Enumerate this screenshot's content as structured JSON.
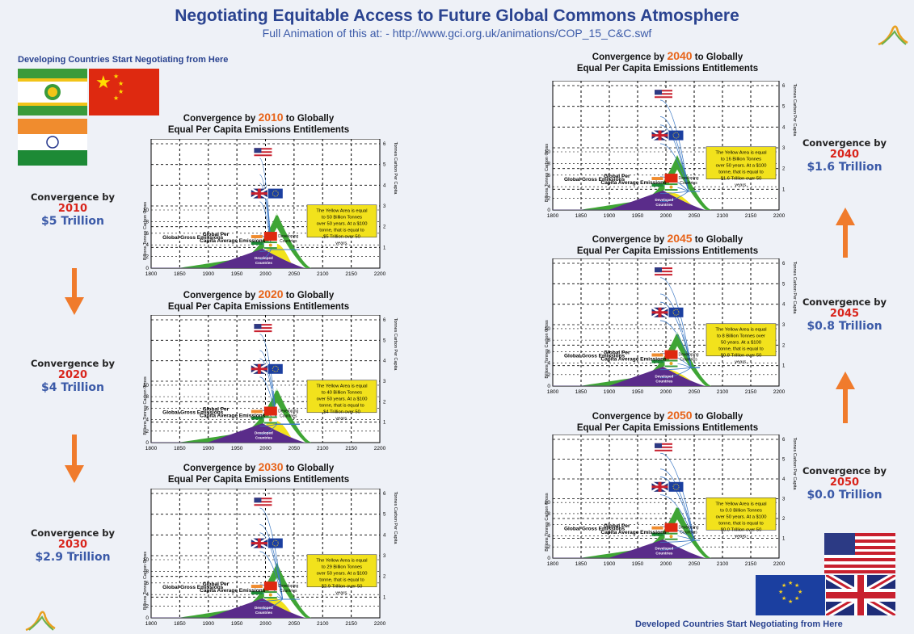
{
  "header": {
    "title": "Negotiating Equitable Access to Future Global Commons Atmosphere",
    "subtitle": "Full Animation of this at: - http://www.gci.org.uk/animations/COP_15_C&C.swf"
  },
  "developing_label": "Developing Countries Start Negotiating from Here",
  "developed_label": "Developed Countries Start Negotiating from Here",
  "side_labels": [
    {
      "line1": "Convergence by",
      "year": "2010",
      "cost": "$5 Trillion"
    },
    {
      "line1": "Convergence by",
      "year": "2020",
      "cost": "$4 Trillion"
    },
    {
      "line1": "Convergence by",
      "year": "2030",
      "cost": "$2.9 Trillion"
    },
    {
      "line1": "Convergence by",
      "year": "2040",
      "cost": "$1.6 Trillion"
    },
    {
      "line1": "Convergence by",
      "year": "2045",
      "cost": "$0.8 Trillion"
    },
    {
      "line1": "Convergence by",
      "year": "2050",
      "cost": "$0.0 Trillion"
    }
  ],
  "colors": {
    "title_blue": "#2a4390",
    "year_red": "#d9251c",
    "year_orange": "#e8641a",
    "arrow": "#f07b2c",
    "green": "#3fa535",
    "purple": "#5a2c8a",
    "yellow": "#f2e21c"
  },
  "chart_data": [
    {
      "type": "area",
      "convergence_year": "2010",
      "title_pre": "Convergence by",
      "title_post": "to Globally",
      "title_line2": "Equal Per Capita Emissions Entitlements",
      "x_ticks": [
        "1800",
        "1850",
        "1900",
        "1950",
        "2000",
        "2050",
        "2100",
        "2150",
        "2200"
      ],
      "y_left_ticks": [
        "0",
        "2",
        "4",
        "6",
        "8",
        "10"
      ],
      "y_right_ticks": [
        "1",
        "2",
        "3",
        "4",
        "5",
        "6"
      ],
      "xlim": [
        1800,
        2200
      ],
      "ylim_left": [
        0,
        10
      ],
      "ylim_right": [
        0,
        6
      ],
      "ylabel_left": "Billions Tonnes Carbon Gross",
      "ylabel_right": "Tonnes Carbon Per Capita",
      "labels": {
        "per_capita": "Global Per Capita Average Emissions",
        "gross": "Global Gross Emissions",
        "developing": "Developing Countries",
        "developed": "Developed Countries",
        "forests": "Forests"
      },
      "note": "The Yellow Area is equal to 50 Billion Tonnes over 50 years. At a $100 tonne, that is equal to $5 Trillion over 50 years.",
      "yellow_billion_tonnes": 50,
      "trillion": 5
    },
    {
      "type": "area",
      "convergence_year": "2020",
      "title_pre": "Convergence by",
      "title_post": "to Globally",
      "title_line2": "Equal Per Capita Emissions Entitlements",
      "x_ticks": [
        "1800",
        "1850",
        "1900",
        "1950",
        "2000",
        "2050",
        "2100",
        "2150",
        "2200"
      ],
      "y_left_ticks": [
        "0",
        "2",
        "4",
        "6",
        "8",
        "10"
      ],
      "y_right_ticks": [
        "1",
        "2",
        "3",
        "4",
        "5",
        "6"
      ],
      "xlim": [
        1800,
        2200
      ],
      "ylim_left": [
        0,
        10
      ],
      "ylim_right": [
        0,
        6
      ],
      "ylabel_left": "Billions Tonnes Carbon Gross",
      "ylabel_right": "Tonnes Carbon Per Capita",
      "labels": {
        "per_capita": "Global Per Capita Average Emissions",
        "gross": "Global Gross Emissions",
        "developing": "Developing Countries",
        "developed": "Developed Countries",
        "forests": "Forests"
      },
      "note": "The Yellow Area is equal to 40 Billion Tonnes over 50 years. At a $100 tonne, that is equal to $4 Trillion over 50 years.",
      "yellow_billion_tonnes": 40,
      "trillion": 4
    },
    {
      "type": "area",
      "convergence_year": "2030",
      "title_pre": "Convergence by",
      "title_post": "to Globally",
      "title_line2": "Equal Per Capita Emissions Entitlements",
      "x_ticks": [
        "1800",
        "1850",
        "1900",
        "1950",
        "2000",
        "2050",
        "2100",
        "2150",
        "2200"
      ],
      "y_left_ticks": [
        "0",
        "2",
        "4",
        "6",
        "8",
        "10"
      ],
      "y_right_ticks": [
        "1",
        "2",
        "3",
        "4",
        "5",
        "6"
      ],
      "xlim": [
        1800,
        2200
      ],
      "ylim_left": [
        0,
        10
      ],
      "ylim_right": [
        0,
        6
      ],
      "ylabel_left": "Billions Tonnes Carbon Gross",
      "ylabel_right": "Tonnes Carbon Per Capita",
      "labels": {
        "per_capita": "Global Per Capita Average Emissions",
        "gross": "Global Gross Emissions",
        "developing": "Developing Countries",
        "developed": "Developed Countries",
        "forests": ""
      },
      "note": "The Yellow Area is equal to 29 Billion Tonnes over 50 years. At a $100 tonne, that is equal to $2.9 Trillion over 50 years.",
      "yellow_billion_tonnes": 29,
      "trillion": 2.9
    },
    {
      "type": "area",
      "convergence_year": "2040",
      "title_pre": "Convergence by",
      "title_post": "to Globally",
      "title_line2": "Equal Per Capita Emissions Entitlements",
      "x_ticks": [
        "1800",
        "1850",
        "1900",
        "1950",
        "2000",
        "2050",
        "2100",
        "2150",
        "2200"
      ],
      "y_left_ticks": [
        "0",
        "2",
        "4",
        "6",
        "8",
        "10"
      ],
      "y_right_ticks": [
        "1",
        "2",
        "3",
        "4",
        "5",
        "6"
      ],
      "xlim": [
        1800,
        2200
      ],
      "ylim_left": [
        0,
        10
      ],
      "ylim_right": [
        0,
        6
      ],
      "ylabel_left": "Billions Tonnes Carbon Gross",
      "ylabel_right": "Tonnes Carbon Per Capita",
      "labels": {
        "per_capita": "Global Per Capita Average Emissions",
        "gross": "Global Gross Emissions",
        "developing": "Developing Countries",
        "developed": "Developed Countries",
        "forests": ""
      },
      "note": "The Yellow Area is equal to 16 Billion Tonnes over 50 years. At a $100 tonne, that is equal to $1.6 Trillion over 50 years.",
      "yellow_billion_tonnes": 16,
      "trillion": 1.6
    },
    {
      "type": "area",
      "convergence_year": "2045",
      "title_pre": "Convergence by",
      "title_post": "to Globally",
      "title_line2": "Equal Per Capita Emissions Entitlements",
      "x_ticks": [
        "1800",
        "1850",
        "1900",
        "1950",
        "2000",
        "2050",
        "2100",
        "2150",
        "2200"
      ],
      "y_left_ticks": [
        "0",
        "2",
        "4",
        "6",
        "8",
        "10"
      ],
      "y_right_ticks": [
        "1",
        "2",
        "3",
        "4",
        "5",
        "6"
      ],
      "xlim": [
        1800,
        2200
      ],
      "ylim_left": [
        0,
        10
      ],
      "ylim_right": [
        0,
        6
      ],
      "ylabel_left": "Billions Tonnes Carbon Gross",
      "ylabel_right": "Tonnes Carbon Per Capita",
      "labels": {
        "per_capita": "Global Per Capita Average Emissions",
        "gross": "Global Gross Emissions",
        "developing": "Developing Countries",
        "developed": "Developed Countries",
        "forests": "Forests"
      },
      "note": "The Yellow Area is equal to 8 Billion Tonnes over 50 years. At a $100 tonne, that is equal to $0.8 Trillion over 50 years.",
      "yellow_billion_tonnes": 8,
      "trillion": 0.8
    },
    {
      "type": "area",
      "convergence_year": "2050",
      "title_pre": "Convergence by",
      "title_post": "to Globally",
      "title_line2": "Equal Per Capita Emissions Entitlements",
      "x_ticks": [
        "1800",
        "1850",
        "1900",
        "1950",
        "2000",
        "2050",
        "2100",
        "2150",
        "2200"
      ],
      "y_left_ticks": [
        "0",
        "2",
        "4",
        "6",
        "8",
        "10"
      ],
      "y_right_ticks": [
        "1",
        "2",
        "3",
        "4",
        "5",
        "6"
      ],
      "xlim": [
        1800,
        2200
      ],
      "ylim_left": [
        0,
        10
      ],
      "ylim_right": [
        0,
        6
      ],
      "ylabel_left": "Billions Tonnes Carbon Gross",
      "ylabel_right": "Tonnes Carbon Per Capita",
      "labels": {
        "per_capita": "Global Per Capita Average Emissions",
        "gross": "Global Gross Emissions",
        "developing": "Developing Countries",
        "developed": "Developed Countries",
        "forests": "Forests"
      },
      "note": "The Yellow Area is equal to 0.0 Billion Tonnes over 50 years. At a $100 tonne, that is equal to $0.0 Trillion over 50 years.",
      "yellow_billion_tonnes": 0,
      "trillion": 0
    }
  ]
}
